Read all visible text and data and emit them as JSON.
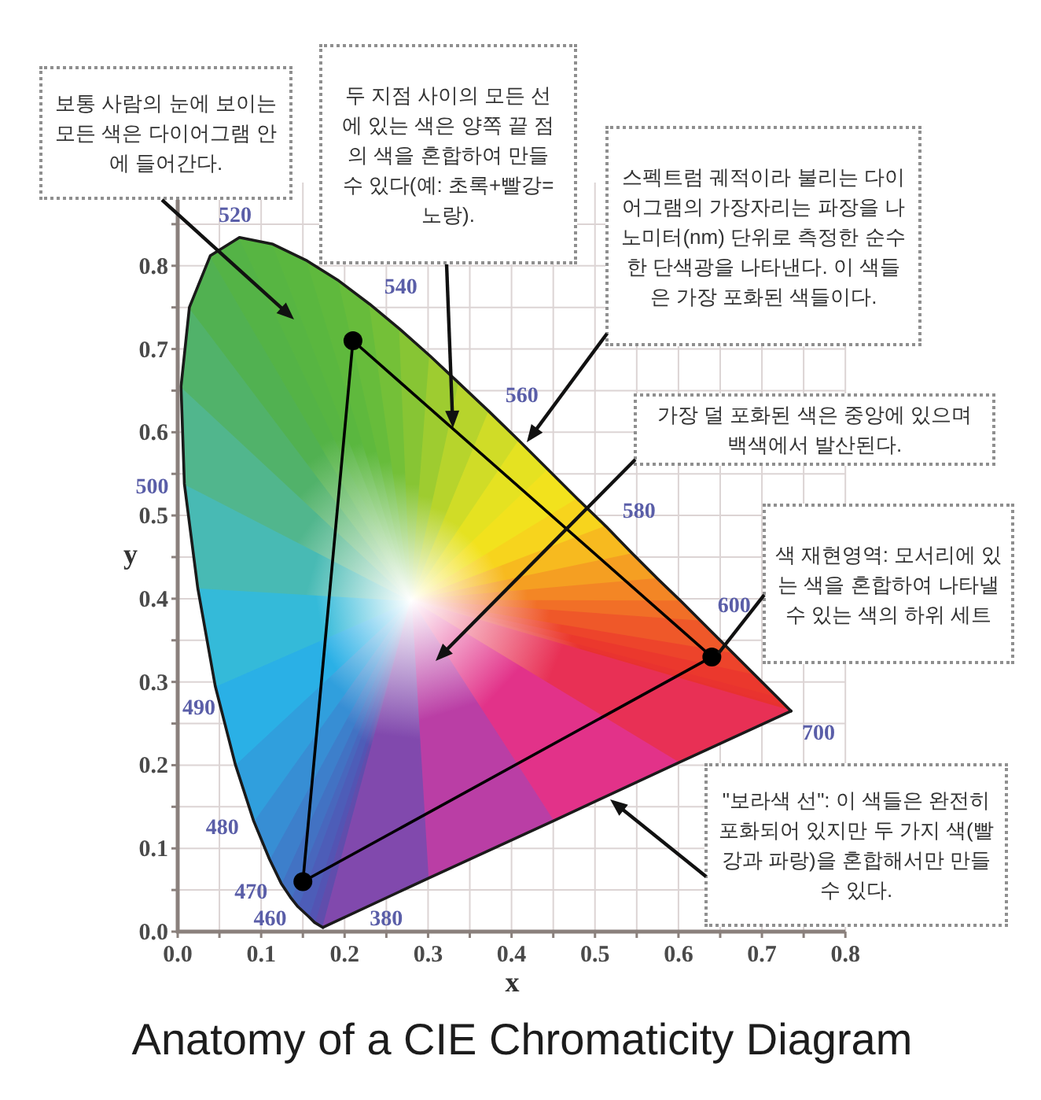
{
  "chart_data": {
    "type": "line",
    "title": "Anatomy of a CIE Chromaticity Diagram",
    "xlabel": "x",
    "ylabel": "y",
    "xlim": [
      0,
      0.8
    ],
    "ylim": [
      0,
      0.9
    ],
    "xticks": [
      {
        "value": 0,
        "label": "0.0"
      },
      {
        "value": 0.05,
        "label": null
      },
      0.1,
      {
        "value": 0.15,
        "label": null
      },
      0.2,
      {
        "value": 0.25,
        "label": null
      },
      0.3,
      {
        "value": 0.35,
        "label": null
      },
      0.4,
      {
        "value": 0.45,
        "label": null
      },
      0.5,
      {
        "value": 0.55,
        "label": null
      },
      0.6,
      {
        "value": 0.65,
        "label": null
      },
      0.7,
      {
        "value": 0.75,
        "label": null
      },
      0.8
    ],
    "yticks": [
      {
        "value": 0,
        "label": "0.0"
      },
      {
        "value": 0.05,
        "label": null
      },
      0.1,
      {
        "value": 0.15,
        "label": null
      },
      0.2,
      {
        "value": 0.25,
        "label": null
      },
      0.3,
      {
        "value": 0.35,
        "label": null
      },
      0.4,
      {
        "value": 0.45,
        "label": null
      },
      0.5,
      {
        "value": 0.55,
        "label": null
      },
      0.6,
      {
        "value": 0.65,
        "label": null
      },
      0.7,
      {
        "value": 0.75,
        "label": null
      },
      0.8,
      {
        "value": 0.85,
        "label": null
      }
    ],
    "grid": true,
    "series": [
      {
        "color": "#1a1a1a",
        "x": [
          0.174,
          0.164,
          0.157,
          0.144,
          0.136,
          0.124,
          0.11,
          0.091,
          0.069,
          0.045,
          0.024,
          0.008,
          0.004,
          0.014,
          0.039,
          0.074,
          0.114,
          0.155,
          0.193,
          0.23,
          0.266,
          0.302,
          0.337,
          0.373,
          0.409,
          0.444,
          0.479,
          0.513,
          0.545,
          0.575,
          0.603,
          0.627,
          0.666,
          0.692,
          0.719,
          0.73,
          0.735
        ],
        "values": [
          0.005,
          0.011,
          0.018,
          0.03,
          0.04,
          0.058,
          0.087,
          0.133,
          0.201,
          0.295,
          0.413,
          0.538,
          0.655,
          0.75,
          0.812,
          0.834,
          0.826,
          0.806,
          0.782,
          0.754,
          0.724,
          0.692,
          0.659,
          0.625,
          0.59,
          0.555,
          0.52,
          0.487,
          0.454,
          0.424,
          0.397,
          0.373,
          0.334,
          0.308,
          0.281,
          0.27,
          0.265
        ],
        "colors": [
          "#6a4aa8",
          "#5650b0",
          "#4f58b5",
          "#4a62ba",
          "#456cbf",
          "#3f78c6",
          "#3a86cf",
          "#3396d8",
          "#2ca8e2",
          "#28b8ea",
          "#40bcc8",
          "#50b8a0",
          "#52b47a",
          "#50b05a",
          "#52b248",
          "#56b444",
          "#58b640",
          "#5cb83e",
          "#62ba3c",
          "#6cbe3a",
          "#7cc236",
          "#92c832",
          "#aad02e",
          "#c4d82a",
          "#dce024",
          "#eee41e",
          "#f6e01c",
          "#f8c81e",
          "#f6ac20",
          "#f49224",
          "#f27a26",
          "#f06428",
          "#ee4c2a",
          "#ec3c2c",
          "#ea342e",
          "#e8322f",
          "#e8302f"
        ]
      },
      {
        "color": "#1a1a1a",
        "x": [
          0.174,
          0.3,
          0.45,
          0.6,
          0.735
        ],
        "values": [
          0.005,
          0.064,
          0.133,
          0.203,
          0.265
        ],
        "colors": [
          "#6a4aa8",
          "#9848b2",
          "#dc3498",
          "#e8307a",
          "#e8302f"
        ]
      },
      {
        "color": "#000000",
        "x": [
          0.15,
          0.21,
          0.64
        ],
        "values": [
          0.06,
          0.71,
          0.33
        ]
      },
      {
        "color": "#000000",
        "x": [
          0.15,
          0.64
        ],
        "values": [
          0.06,
          0.33
        ]
      },
      {
        "type": "scatter",
        "color": "#000000",
        "marker": "circle",
        "x": [
          0.64,
          0.21,
          0.15
        ],
        "values": [
          0.33,
          0.71,
          0.06
        ]
      }
    ],
    "annotations": [
      "보통 사람의 눈에 보이는 모든 색은 다이어그램 안에 들어간다.",
      "두 지점 사이의 모든 선에 있는 색은 양쪽 끝 점의 색을 혼합하여 만들 수 있다(예: 초록+빨강=노랑).",
      "스펙트럼 궤적이라 불리는 다이어그램의 가장자리는 파장을 나노미터(nm) 단위로 측정한 순수한 단색광을 나타낸다. 이 색들은 가장 포화된 색들이다.",
      "가장 덜 포화된 색은 중앙에 있으며 백색에서 발산된다.",
      "색 재현영역: 모서리에 있는 색을 혼합하여 나타낼 수 있는 색의 하위 세트",
      "\"보라색 선\": 이 색들은 완전히 포화되어 있지만 두 가지 색(빨강과 파랑)을 혼합해서만 만들 수 있다.",
      {
        "text": "520",
        "x": 0.074,
        "y": 0.834
      },
      {
        "text": "540",
        "x": 0.23,
        "y": 0.754
      },
      {
        "text": "560",
        "x": 0.373,
        "y": 0.625
      },
      {
        "text": "580",
        "x": 0.513,
        "y": 0.487
      },
      {
        "text": "600",
        "x": 0.627,
        "y": 0.373
      },
      {
        "text": "700",
        "x": 0.735,
        "y": 0.265
      },
      {
        "text": "500",
        "x": 0.008,
        "y": 0.538
      },
      {
        "text": "490",
        "x": 0.045,
        "y": 0.295
      },
      {
        "text": "480",
        "x": 0.091,
        "y": 0.133
      },
      {
        "text": "470",
        "x": 0.124,
        "y": 0.058
      },
      {
        "text": "460",
        "x": 0.144,
        "y": 0.03
      },
      {
        "text": "380",
        "x": 0.174,
        "y": 0.005
      }
    ]
  }
}
